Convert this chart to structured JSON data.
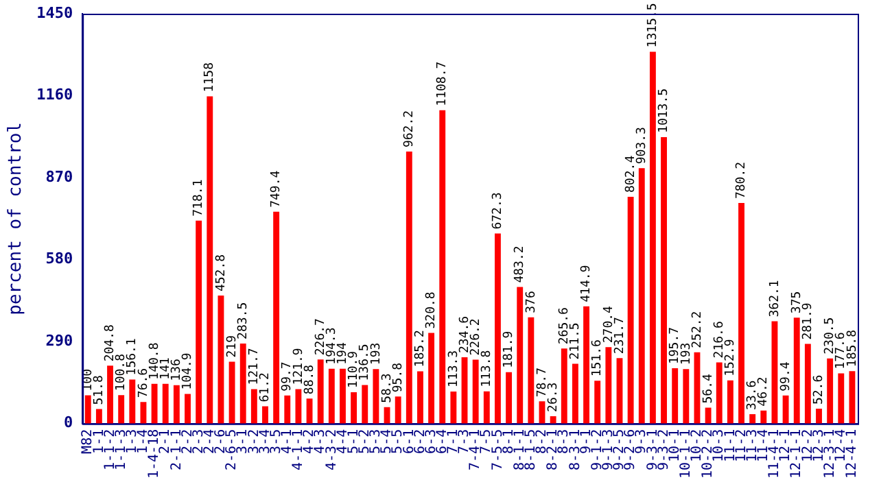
{
  "chart_data": {
    "type": "bar",
    "ylabel": "percent of control",
    "categories": [
      "M82",
      "1-1",
      "1-1-2",
      "1-1-3",
      "1-3",
      "1-4",
      "1-4-18",
      "2-1",
      "2-1-1",
      "2-2",
      "2-3",
      "2-4",
      "2-6",
      "2-6-5",
      "3-1",
      "3-2",
      "3-4",
      "3-5",
      "4-1",
      "4-1-1",
      "4-2",
      "4-3",
      "4-3-2",
      "4-4",
      "5-1",
      "5-2",
      "5-3",
      "5-4",
      "5-5",
      "6-1",
      "6-2",
      "6-3",
      "6-4",
      "7-1",
      "7-3",
      "7-4-1",
      "7-5",
      "7-5-5",
      "8-1",
      "8-1-1",
      "8-1-5",
      "8-2",
      "8-2-1",
      "8-3",
      "8-3-1",
      "9-1",
      "9-1-2",
      "9-1-3",
      "9-2-5",
      "9-2-6",
      "9-3",
      "9-3-1",
      "9-3-2",
      "10-1",
      "10-1-1",
      "10-2",
      "10-2-2",
      "10-3",
      "11-1",
      "11-2",
      "11-3",
      "11-4",
      "11-4-1",
      "12-1",
      "12-1-1",
      "12-2",
      "12-3",
      "12-3-1",
      "12-4",
      "12-4-1"
    ],
    "values": [
      100,
      51.8,
      204.8,
      100.8,
      156.1,
      76.6,
      140.8,
      141,
      136,
      104.9,
      718.1,
      1158,
      452.8,
      219,
      283.5,
      121.7,
      61.2,
      749.4,
      99.7,
      121.9,
      88.8,
      226.7,
      194.3,
      194,
      110.9,
      136.5,
      193,
      58.3,
      95.8,
      962.2,
      185.2,
      320.8,
      1108.7,
      113.3,
      234.6,
      226.2,
      113.8,
      672.3,
      181.9,
      483.2,
      376,
      78.7,
      26.3,
      265.6,
      211.5,
      414.9,
      151.6,
      270.4,
      231.7,
      802.4,
      903.3,
      1315.5,
      1013.5,
      195.7,
      193,
      252.2,
      56.4,
      216.6,
      152.9,
      780.2,
      33.6,
      46.2,
      362.1,
      99.4,
      375,
      281.9,
      52.6,
      230.5,
      177.6,
      185.8
    ],
    "color": "#ff0000",
    "ylim": [
      0,
      1450
    ],
    "yticks": [
      0,
      290,
      580,
      870,
      1160,
      1450
    ],
    "grid": false,
    "legend": false,
    "data_labels": true
  }
}
